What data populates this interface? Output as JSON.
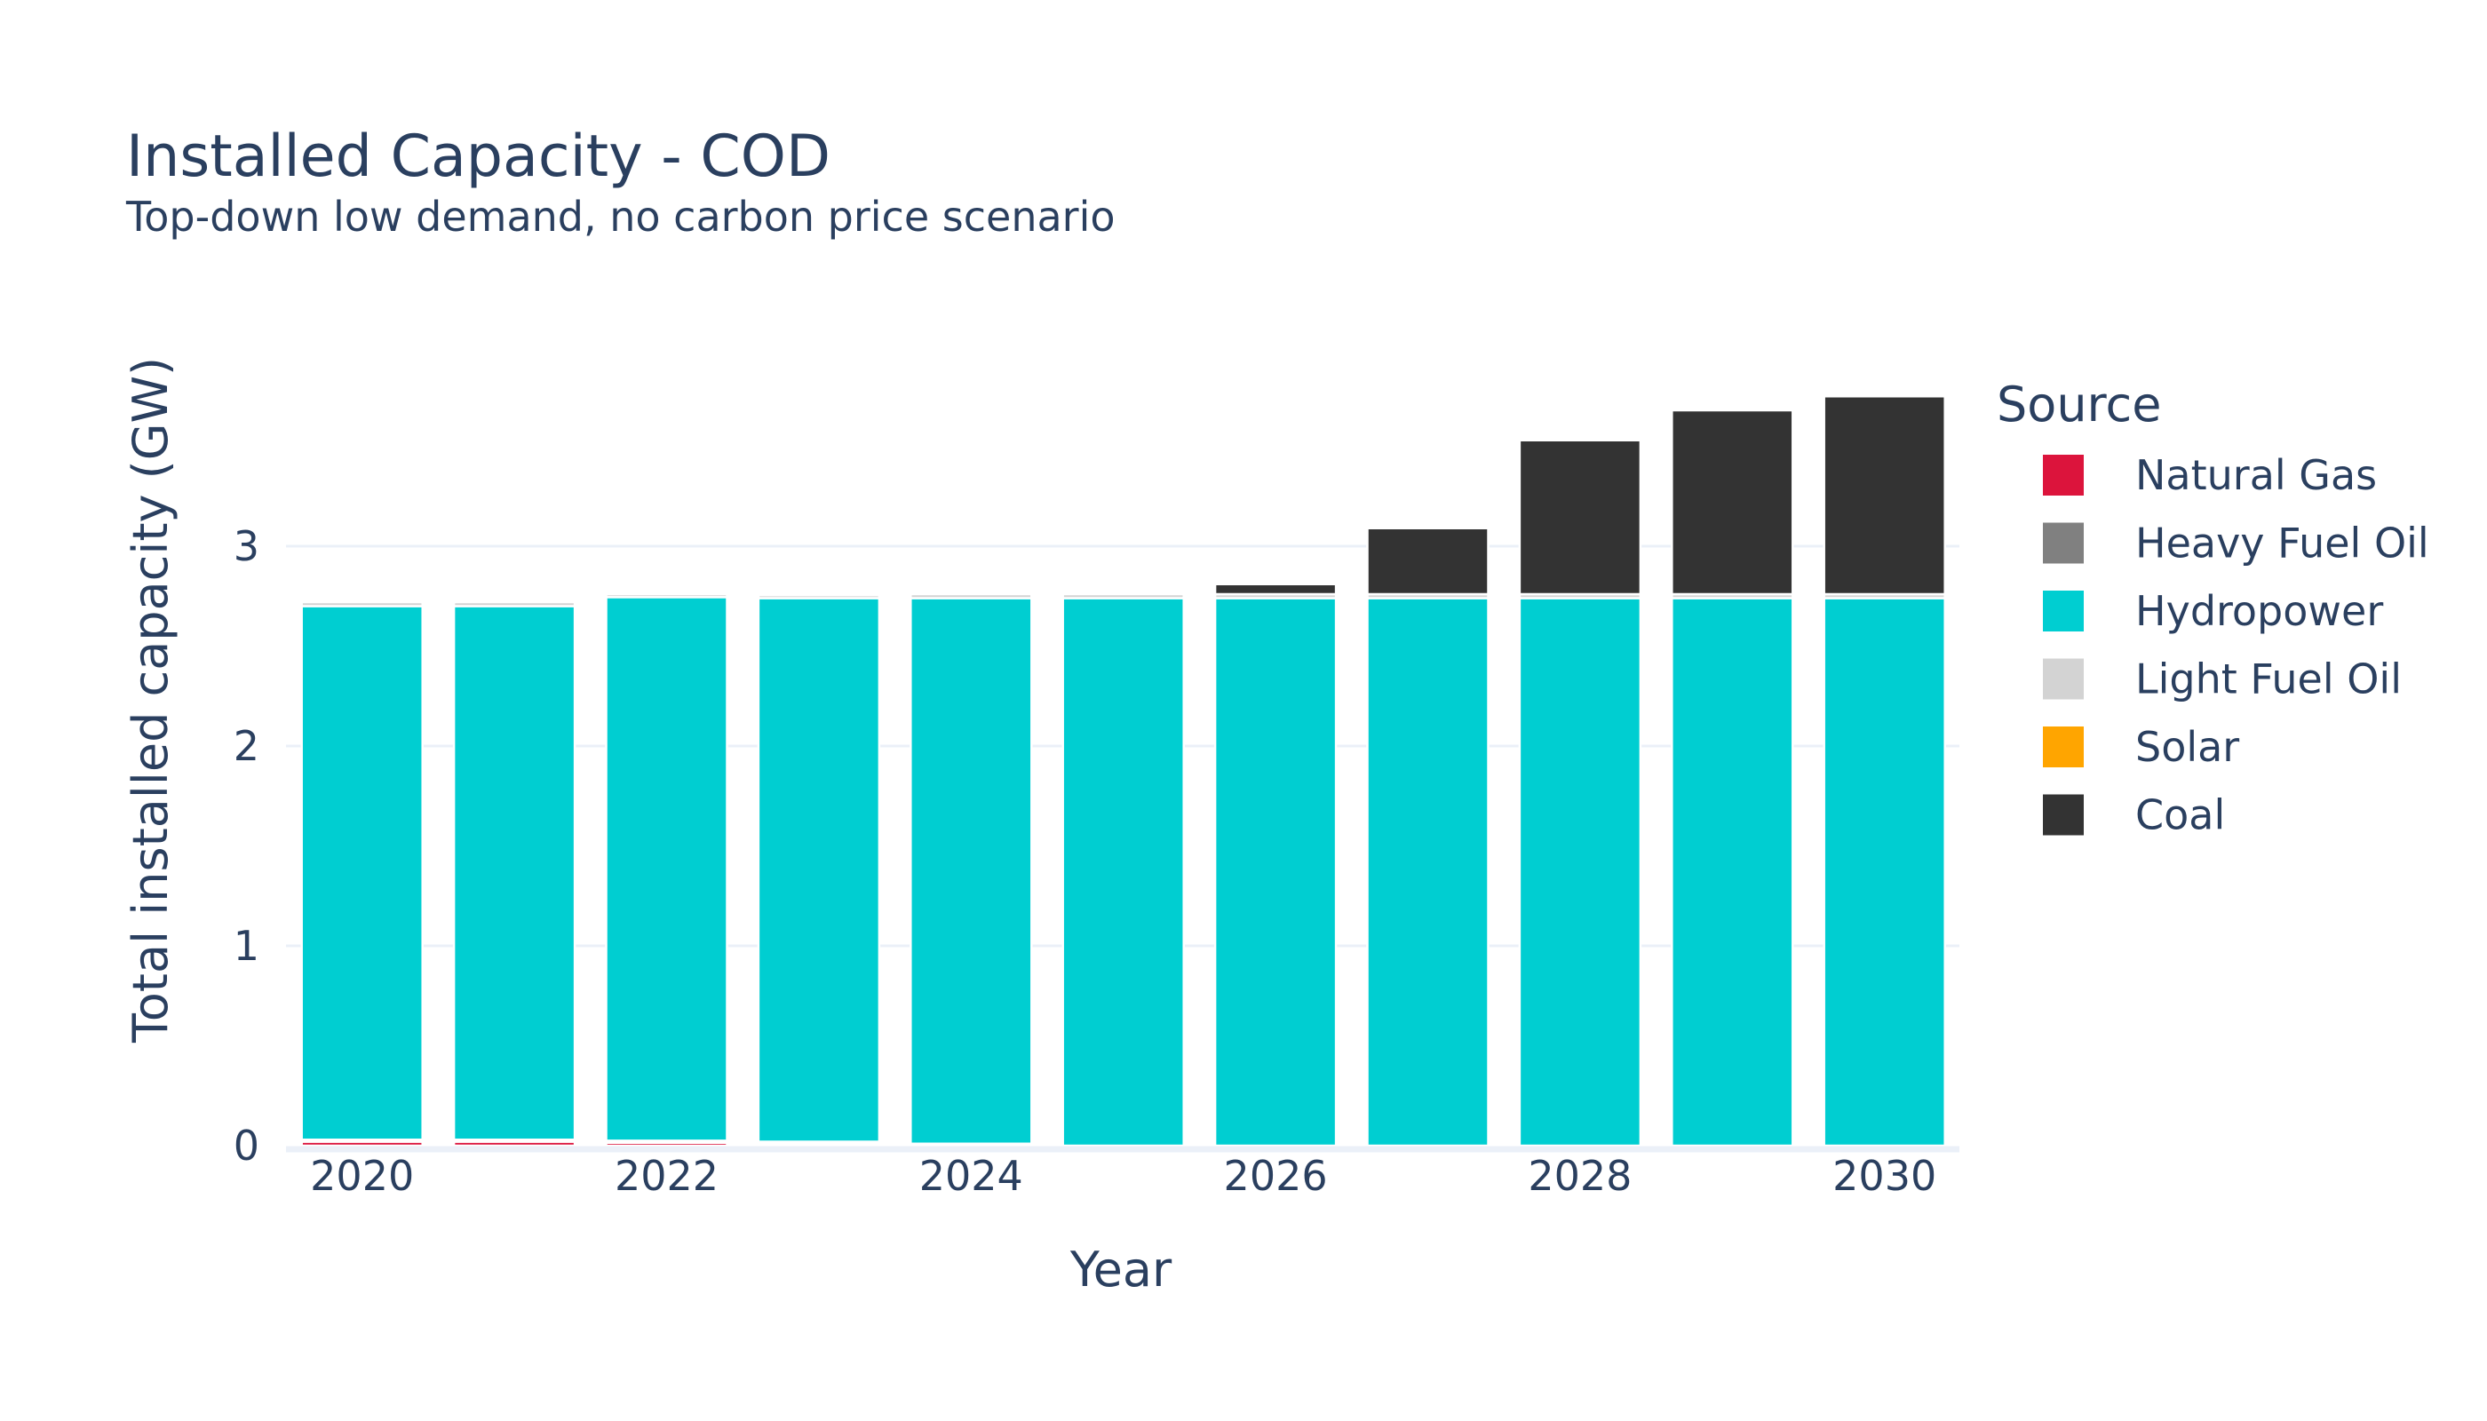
{
  "chart_data": {
    "type": "bar",
    "stacked": true,
    "title": "Installed Capacity - COD",
    "subtitle": "Top-down low demand, no carbon price scenario",
    "xlabel": "Year",
    "ylabel": "Total installed capacity (GW)",
    "x": [
      2020,
      2021,
      2022,
      2023,
      2024,
      2025,
      2026,
      2027,
      2028,
      2029,
      2030
    ],
    "x_ticks": [
      "2020",
      "2022",
      "2024",
      "2026",
      "2028",
      "2030"
    ],
    "y_ticks": [
      "0",
      "1",
      "2",
      "3"
    ],
    "ylim": [
      0,
      3.9
    ],
    "grid": true,
    "legend_title": "Source",
    "legend_position": "right",
    "series": [
      {
        "name": "Natural Gas",
        "color": "#DC143C",
        "values": [
          0.02,
          0.02,
          0.015,
          0.01,
          0.0,
          0.0,
          0.0,
          0.0,
          0.0,
          0.0,
          0.0
        ]
      },
      {
        "name": "Heavy Fuel Oil",
        "color": "#808080",
        "values": [
          0.01,
          0.01,
          0.01,
          0.01,
          0.01,
          0.0,
          0.0,
          0.0,
          0.0,
          0.0,
          0.0
        ]
      },
      {
        "name": "Hydropower",
        "color": "#00CED1",
        "values": [
          2.67,
          2.67,
          2.72,
          2.72,
          2.73,
          2.74,
          2.74,
          2.74,
          2.74,
          2.74,
          2.74
        ]
      },
      {
        "name": "Light Fuel Oil",
        "color": "#D3D3D3",
        "values": [
          0.02,
          0.02,
          0.015,
          0.015,
          0.02,
          0.02,
          0.02,
          0.02,
          0.02,
          0.02,
          0.02
        ]
      },
      {
        "name": "Solar",
        "color": "#FFA500",
        "values": [
          0.0,
          0.0,
          0.0,
          0.0,
          0.0,
          0.0,
          0.0,
          0.0,
          0.0,
          0.0,
          0.0
        ]
      },
      {
        "name": "Coal",
        "color": "#333333",
        "values": [
          0.0,
          0.0,
          0.0,
          0.0,
          0.0,
          0.0,
          0.05,
          0.33,
          0.77,
          0.92,
          0.99
        ]
      }
    ]
  }
}
